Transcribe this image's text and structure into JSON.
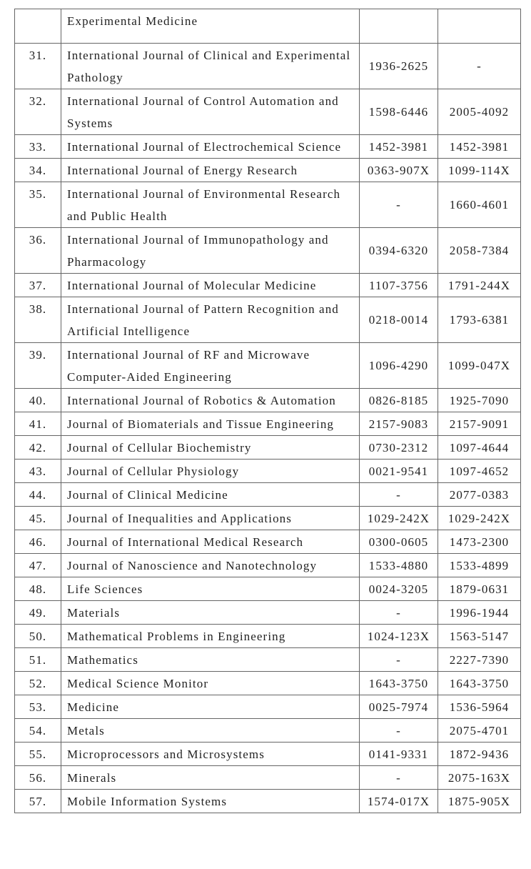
{
  "table": {
    "rows": [
      [
        null,
        "Experimental Medicine",
        null,
        null
      ],
      [
        "31.",
        "International Journal of Clinical and Experimental Pathology",
        "1936-2625",
        "-"
      ],
      [
        "32.",
        "International Journal of Control Automation and Systems",
        "1598-6446",
        "2005-4092"
      ],
      [
        "33.",
        "International Journal of Electrochemical Science",
        "1452-3981",
        "1452-3981"
      ],
      [
        "34.",
        "International Journal of Energy Research",
        "0363-907X",
        "1099-114X"
      ],
      [
        "35.",
        "International Journal of Environmental Research and Public Health",
        "-",
        "1660-4601"
      ],
      [
        "36.",
        "International Journal of Immunopathology and Pharmacology",
        "0394-6320",
        "2058-7384"
      ],
      [
        "37.",
        "International Journal of Molecular Medicine",
        "1107-3756",
        "1791-244X"
      ],
      [
        "38.",
        "International Journal of Pattern Recognition and Artificial Intelligence",
        "0218-0014",
        "1793-6381"
      ],
      [
        "39.",
        "International Journal of RF and Microwave Computer-Aided Engineering",
        "1096-4290",
        "1099-047X"
      ],
      [
        "40.",
        "International Journal of Robotics & Automation",
        "0826-8185",
        "1925-7090"
      ],
      [
        "41.",
        "Journal of Biomaterials and Tissue Engineering",
        "2157-9083",
        "2157-9091"
      ],
      [
        "42.",
        "Journal of Cellular Biochemistry",
        "0730-2312",
        "1097-4644"
      ],
      [
        "43.",
        "Journal of Cellular Physiology",
        "0021-9541",
        "1097-4652"
      ],
      [
        "44.",
        "Journal of Clinical Medicine",
        "-",
        "2077-0383"
      ],
      [
        "45.",
        "Journal of Inequalities and Applications",
        "1029-242X",
        "1029-242X"
      ],
      [
        "46.",
        "Journal of International Medical Research",
        "0300-0605",
        "1473-2300"
      ],
      [
        "47.",
        "Journal of Nanoscience and Nanotechnology",
        "1533-4880",
        "1533-4899"
      ],
      [
        "48.",
        "Life Sciences",
        "0024-3205",
        "1879-0631"
      ],
      [
        "49.",
        "Materials",
        "-",
        "1996-1944"
      ],
      [
        "50.",
        "Mathematical Problems in Engineering",
        "1024-123X",
        "1563-5147"
      ],
      [
        "51.",
        "Mathematics",
        "-",
        "2227-7390"
      ],
      [
        "52.",
        "Medical Science Monitor",
        "1643-3750",
        "1643-3750"
      ],
      [
        "53.",
        "Medicine",
        "0025-7974",
        "1536-5964"
      ],
      [
        "54.",
        "Metals",
        "-",
        "2075-4701"
      ],
      [
        "55.",
        "Microprocessors and Microsystems",
        "0141-9331",
        "1872-9436"
      ],
      [
        "56.",
        "Minerals",
        "-",
        "2075-163X"
      ],
      [
        "57.",
        "Mobile Information Systems",
        "1574-017X",
        "1875-905X"
      ]
    ]
  }
}
